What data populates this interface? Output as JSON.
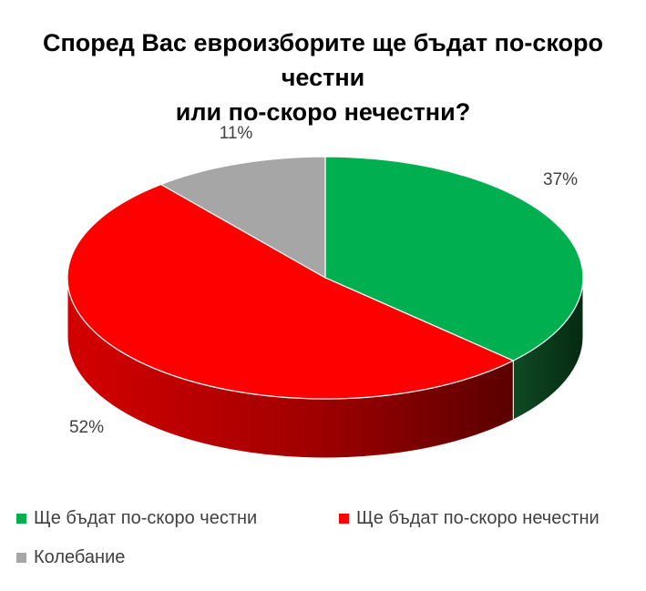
{
  "chart_data": {
    "type": "pie",
    "title_line1": "Според Вас евроизборите ще бъдат по-скоро честни",
    "title_line2": "или по-скоро нечестни?",
    "slices": [
      {
        "name": "Ще бъдат по-скоро честни",
        "value": 37,
        "label": "37%",
        "color": "#00b050",
        "side_color": "#0a3d1c"
      },
      {
        "name": "Ще бъдат по-скоро нечестни",
        "value": 52,
        "label": "52%",
        "color": "#ff0000",
        "side_color": "#b00000"
      },
      {
        "name": "Колебание",
        "value": 11,
        "label": "11%",
        "color": "#a6a6a6",
        "side_color": "#6e6e6e"
      }
    ],
    "legend_position": "bottom",
    "style": "3d-pie"
  }
}
